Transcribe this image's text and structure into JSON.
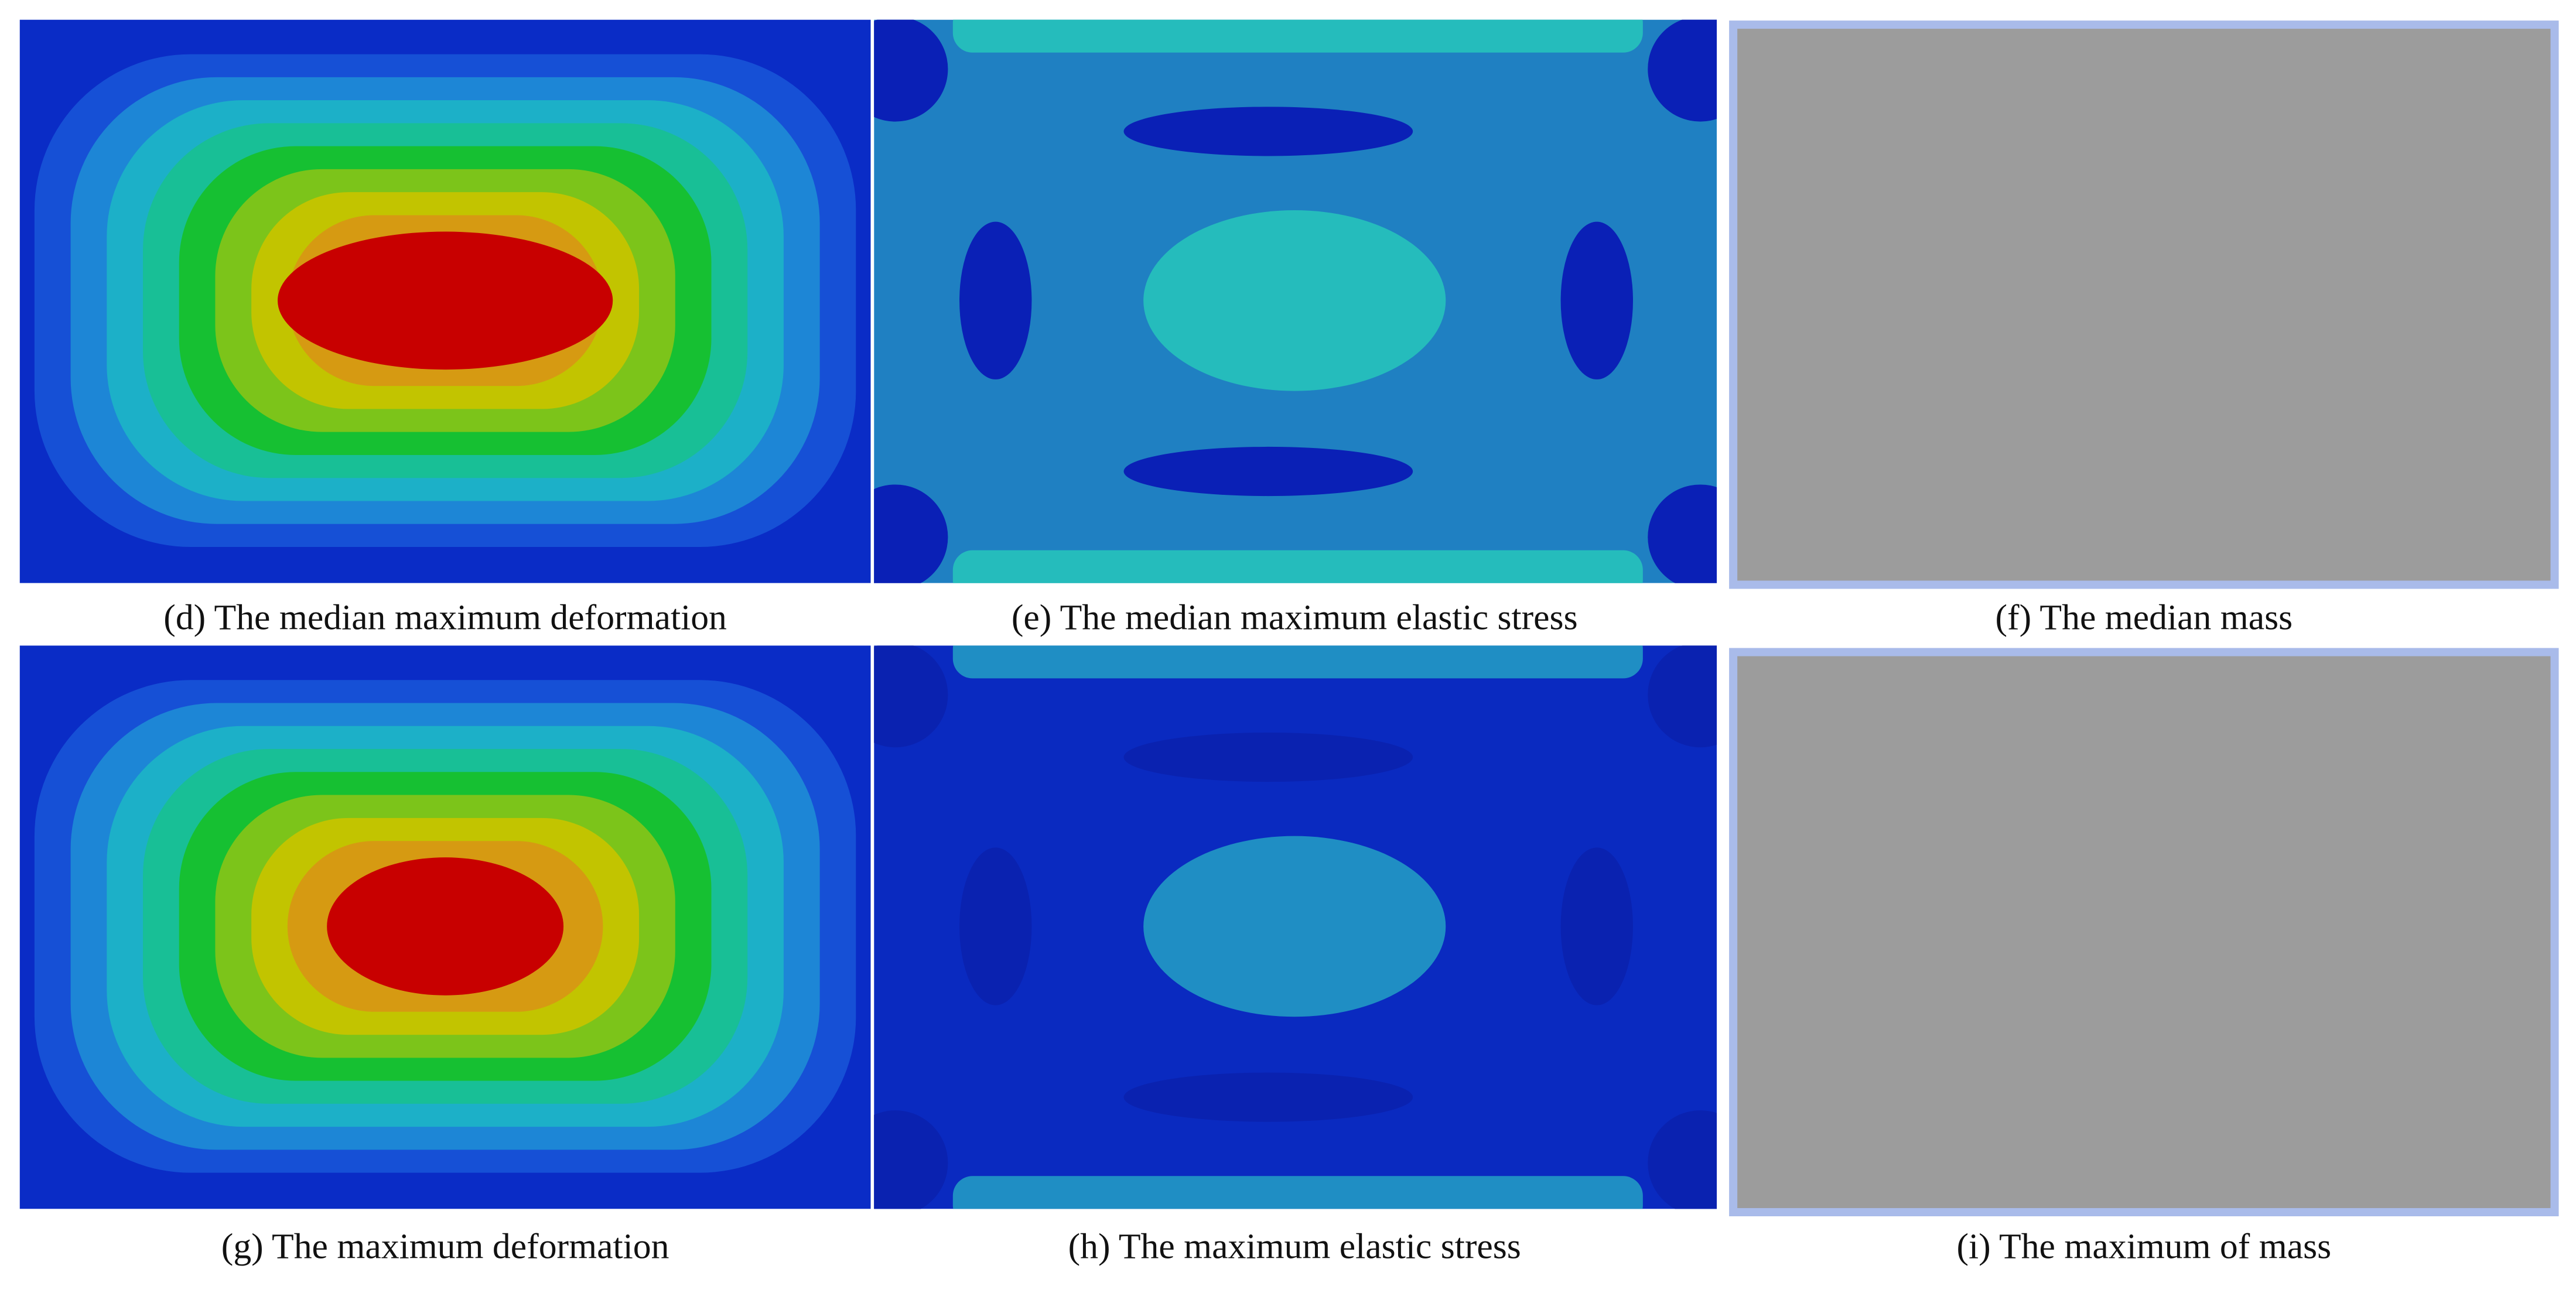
{
  "panels": [
    {
      "caption": "(d) The median maximum deformation"
    },
    {
      "caption": "(e) The median maximum elastic stress"
    },
    {
      "caption": "(f) The median mass"
    },
    {
      "caption": "(g) The maximum deformation"
    },
    {
      "caption": "(h) The maximum elastic stress"
    },
    {
      "caption": "(i) The maximum of mass"
    }
  ]
}
